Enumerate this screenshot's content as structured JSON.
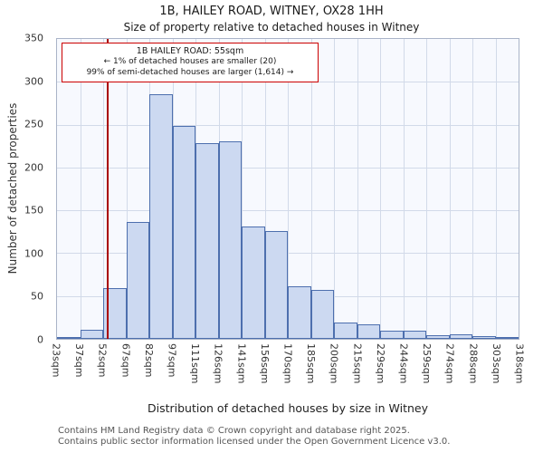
{
  "chart_data": {
    "type": "bar",
    "title": "1B, HAILEY ROAD, WITNEY, OX28 1HH",
    "subtitle": "Size of property relative to detached houses in Witney",
    "xlabel": "Distribution of detached houses by size in Witney",
    "ylabel": "Number of detached properties",
    "ylim": [
      0,
      350
    ],
    "yticks": [
      0,
      50,
      100,
      150,
      200,
      250,
      300,
      350
    ],
    "grid": true,
    "legend": "none",
    "categories": [
      "23sqm",
      "37sqm",
      "52sqm",
      "67sqm",
      "82sqm",
      "97sqm",
      "111sqm",
      "126sqm",
      "141sqm",
      "156sqm",
      "170sqm",
      "185sqm",
      "200sqm",
      "215sqm",
      "229sqm",
      "244sqm",
      "259sqm",
      "274sqm",
      "288sqm",
      "303sqm",
      "318sqm"
    ],
    "values": [
      2,
      11,
      59,
      136,
      285,
      248,
      228,
      231,
      131,
      126,
      61,
      57,
      19,
      17,
      10,
      10,
      4,
      5,
      3,
      1
    ],
    "marker": {
      "sqm": 55,
      "label": "55sqm"
    },
    "colors": {
      "bar_fill": "#ccd9f1",
      "bar_border": "#4d6fae",
      "marker_line": "#aa0000",
      "annotation_border": "#cc0000",
      "grid": "#d2dae9",
      "plot_background": "#f7f9fe"
    }
  },
  "annotation": {
    "line1": "1B HAILEY ROAD: 55sqm",
    "line2": "← 1% of detached houses are smaller (20)",
    "line3": "99% of semi-detached houses are larger (1,614) →"
  },
  "footer": {
    "line1": "Contains HM Land Registry data © Crown copyright and database right 2025.",
    "line2": "Contains public sector information licensed under the Open Government Licence v3.0."
  }
}
